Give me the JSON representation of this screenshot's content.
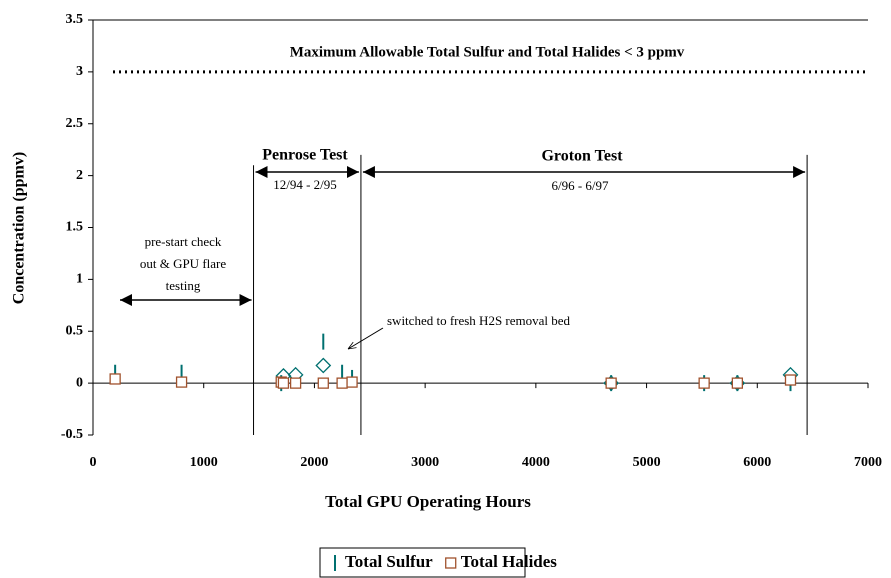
{
  "chart_data": {
    "type": "scatter",
    "x_label": "Total GPU Operating Hours",
    "y_label": "Concentration (ppmv)",
    "xlim": [
      0,
      7000
    ],
    "ylim": [
      -0.5,
      3.5
    ],
    "xticks": [
      0,
      1000,
      2000,
      3000,
      4000,
      5000,
      6000,
      7000
    ],
    "yticks": [
      3.5,
      3,
      2.5,
      2,
      1.5,
      1,
      0.5,
      0,
      -0.5
    ],
    "legend": "bottom",
    "series": [
      {
        "name": "Total Sulfur",
        "color": "#007070",
        "marker": "tick",
        "x": [
          200,
          800,
          1700,
          2080,
          2250,
          2340,
          4680,
          5520,
          5820,
          6300
        ],
        "values": [
          0.1,
          0.1,
          0.0,
          0.4,
          0.1,
          0.05,
          0.0,
          0.0,
          0.0,
          0.0
        ]
      },
      {
        "color": "#007070",
        "marker": "diamond",
        "x": [
          1720,
          1830,
          2080,
          4680,
          5820,
          6300
        ],
        "values": [
          0.07,
          0.08,
          0.17,
          0.0,
          0.0,
          0.08
        ]
      },
      {
        "name": "Total Halides",
        "color": "#a0522d",
        "marker": "square",
        "x": [
          200,
          800,
          1700,
          1720,
          1830,
          2080,
          2250,
          2340,
          4680,
          5520,
          5820,
          6300
        ],
        "values": [
          0.04,
          0.01,
          0.01,
          0.0,
          0.0,
          0.0,
          0.0,
          0.01,
          0.0,
          0.0,
          0.0,
          0.03
        ]
      }
    ],
    "threshold": {
      "value": 3,
      "label": "Maximum Allowable Total Sulfur and Total Halides < 3 ppmv"
    },
    "boundaries": [
      1450,
      2420,
      6450
    ],
    "annotations": {
      "penrose": "Penrose Test",
      "penrose_dates": "12/94 - 2/95",
      "groton": "Groton Test",
      "groton_dates": "6/96 - 6/97",
      "prestart": [
        "pre-start check",
        "out & GPU flare",
        "testing"
      ],
      "switched": "switched to fresh H2S removal bed"
    }
  }
}
